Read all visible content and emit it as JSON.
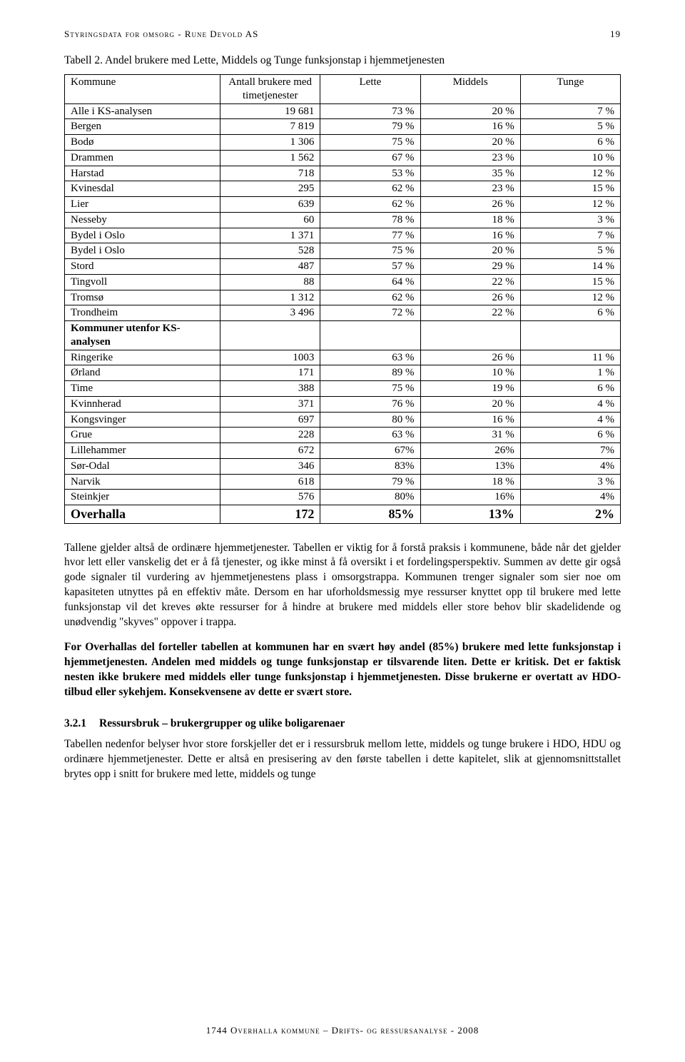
{
  "header": {
    "title": "Styringsdata for omsorg - Rune Devold AS",
    "page_number": "19"
  },
  "caption": "Tabell 2. Andel brukere med Lette, Middels og Tunge funksjonstap i hjemmetjenesten",
  "table": {
    "columns": [
      "Kommune",
      "Antall brukere med timetjenester",
      "Lette",
      "Middels",
      "Tunge"
    ],
    "rows": [
      {
        "k": "Alle i KS-analysen",
        "n": "19 681",
        "l": "73 %",
        "m": "20 %",
        "t": "7 %"
      },
      {
        "k": "Bergen",
        "n": "7 819",
        "l": "79 %",
        "m": "16 %",
        "t": "5 %"
      },
      {
        "k": "Bodø",
        "n": "1 306",
        "l": "75 %",
        "m": "20 %",
        "t": "6 %"
      },
      {
        "k": "Drammen",
        "n": "1 562",
        "l": "67 %",
        "m": "23 %",
        "t": "10 %"
      },
      {
        "k": "Harstad",
        "n": "718",
        "l": "53 %",
        "m": "35 %",
        "t": "12 %"
      },
      {
        "k": "Kvinesdal",
        "n": "295",
        "l": "62 %",
        "m": "23 %",
        "t": "15 %"
      },
      {
        "k": "Lier",
        "n": "639",
        "l": "62 %",
        "m": "26 %",
        "t": "12 %"
      },
      {
        "k": "Nesseby",
        "n": "60",
        "l": "78 %",
        "m": "18 %",
        "t": "3 %"
      },
      {
        "k": "Bydel i Oslo",
        "n": "1 371",
        "l": "77 %",
        "m": "16 %",
        "t": "7 %"
      },
      {
        "k": "Bydel i Oslo",
        "n": "528",
        "l": "75 %",
        "m": "20 %",
        "t": "5 %"
      },
      {
        "k": "Stord",
        "n": "487",
        "l": "57 %",
        "m": "29 %",
        "t": "14 %"
      },
      {
        "k": "Tingvoll",
        "n": "88",
        "l": "64 %",
        "m": "22 %",
        "t": "15 %"
      },
      {
        "k": "Tromsø",
        "n": "1 312",
        "l": "62 %",
        "m": "26 %",
        "t": "12 %"
      },
      {
        "k": "Trondheim",
        "n": "3 496",
        "l": "72 %",
        "m": "22 %",
        "t": "6 %"
      },
      {
        "k": "Kommuner utenfor KS-analysen",
        "n": "",
        "l": "",
        "m": "",
        "t": "",
        "section": true
      },
      {
        "k": "Ringerike",
        "n": "1003",
        "l": "63 %",
        "m": "26 %",
        "t": "11 %"
      },
      {
        "k": "Ørland",
        "n": "171",
        "l": "89 %",
        "m": "10 %",
        "t": "1 %"
      },
      {
        "k": "Time",
        "n": "388",
        "l": "75 %",
        "m": "19 %",
        "t": "6 %"
      },
      {
        "k": "Kvinnherad",
        "n": "371",
        "l": "76 %",
        "m": "20 %",
        "t": "4 %"
      },
      {
        "k": "Kongsvinger",
        "n": "697",
        "l": "80 %",
        "m": "16 %",
        "t": "4 %"
      },
      {
        "k": "Grue",
        "n": "228",
        "l": "63 %",
        "m": "31 %",
        "t": "6 %"
      },
      {
        "k": "Lillehammer",
        "n": "672",
        "l": "67%",
        "m": "26%",
        "t": "7%"
      },
      {
        "k": "Sør-Odal",
        "n": "346",
        "l": "83%",
        "m": "13%",
        "t": "4%"
      },
      {
        "k": "Narvik",
        "n": "618",
        "l": "79 %",
        "m": "18 %",
        "t": "3 %"
      },
      {
        "k": "Steinkjer",
        "n": "576",
        "l": "80%",
        "m": "16%",
        "t": "4%"
      },
      {
        "k": "Overhalla",
        "n": "172",
        "l": "85%",
        "m": "13%",
        "t": "2%",
        "highlight": true
      }
    ]
  },
  "para1": "Tallene gjelder altså de ordinære hjemmetjenester. Tabellen er viktig for å forstå praksis i kommunene, både når det gjelder hvor lett eller vanskelig det er å få tjenester, og ikke minst å få oversikt i et fordelingsperspektiv. Summen av dette gir også gode signaler til vurdering av hjemmetjenestens plass i omsorgstrappa. Kommunen trenger signaler som sier noe om kapasiteten utnyttes på en effektiv måte. Dersom en har uforholdsmessig mye ressurser knyttet opp til brukere med lette funksjonstap vil det kreves økte ressurser for å hindre at brukere med middels eller store behov blir skadelidende og unødvendig \"skyves\" oppover i trappa.",
  "para2": "For Overhallas del forteller tabellen at kommunen har en svært høy andel (85%) brukere med lette funksjonstap i hjemmetjenesten. Andelen med middels og tunge funksjonstap er tilsvarende liten. Dette er kritisk. Det er faktisk nesten ikke brukere med middels eller tunge funksjonstap i hjemmetjenesten. Disse brukerne er overtatt av HDO-tilbud eller sykehjem. Konsekvensene av dette er svært store.",
  "subhead": {
    "num": "3.2.1",
    "text": "Ressursbruk – brukergrupper og ulike boligarenaer"
  },
  "para3": "Tabellen nedenfor belyser hvor store forskjeller det er i ressursbruk mellom lette, middels og tunge brukere i HDO, HDU og ordinære hjemmetjenester. Dette er altså en presisering av den første tabellen i dette kapitelet, slik at gjennomsnittstallet brytes opp i snitt for brukere med lette, middels og tunge",
  "footer": "1744 Overhalla kommune – Drifts- og ressursanalyse - 2008"
}
